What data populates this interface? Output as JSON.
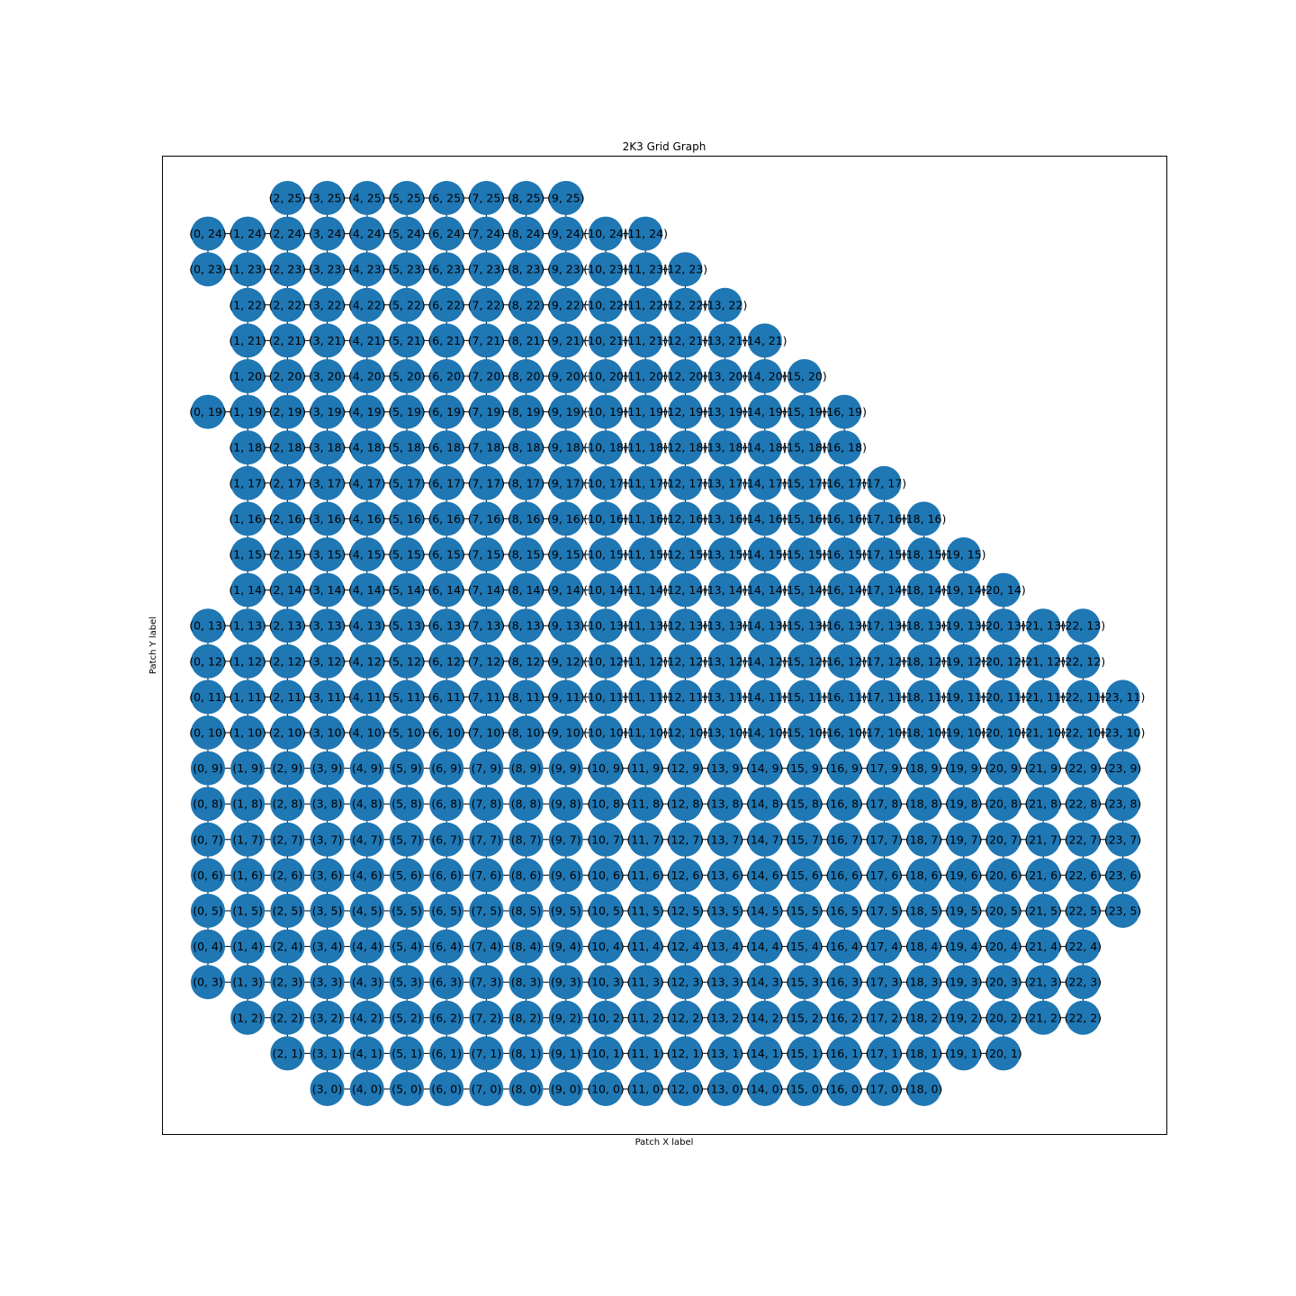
{
  "figure": {
    "title": "2K3 Grid Graph",
    "xlabel": "Patch X label",
    "ylabel": "Patch Y label"
  },
  "colors": {
    "node": "#1f77b4",
    "edge": "#000000",
    "frame": "#000000",
    "background": "#ffffff"
  },
  "graph": {
    "type": "grid-graph",
    "rows": [
      {
        "y": 25,
        "x": [
          2,
          3,
          4,
          5,
          6,
          7,
          8,
          9
        ]
      },
      {
        "y": 24,
        "x": [
          0,
          1,
          2,
          3,
          4,
          5,
          6,
          7,
          8,
          9,
          10,
          11
        ]
      },
      {
        "y": 23,
        "x": [
          0,
          1,
          2,
          3,
          4,
          5,
          6,
          7,
          8,
          9,
          10,
          11,
          12
        ]
      },
      {
        "y": 22,
        "x": [
          1,
          2,
          3,
          4,
          5,
          6,
          7,
          8,
          9,
          10,
          11,
          12,
          13
        ]
      },
      {
        "y": 21,
        "x": [
          1,
          2,
          3,
          4,
          5,
          6,
          7,
          8,
          9,
          10,
          11,
          12,
          13,
          14
        ]
      },
      {
        "y": 20,
        "x": [
          1,
          2,
          3,
          4,
          5,
          6,
          7,
          8,
          9,
          10,
          11,
          12,
          13,
          14,
          15
        ]
      },
      {
        "y": 19,
        "x": [
          0,
          1,
          2,
          3,
          4,
          5,
          6,
          7,
          8,
          9,
          10,
          11,
          12,
          13,
          14,
          15,
          16
        ]
      },
      {
        "y": 18,
        "x": [
          1,
          2,
          3,
          4,
          5,
          6,
          7,
          8,
          9,
          10,
          11,
          12,
          13,
          14,
          15,
          16
        ]
      },
      {
        "y": 17,
        "x": [
          1,
          2,
          3,
          4,
          5,
          6,
          7,
          8,
          9,
          10,
          11,
          12,
          13,
          14,
          15,
          16,
          17
        ]
      },
      {
        "y": 16,
        "x": [
          1,
          2,
          3,
          4,
          5,
          6,
          7,
          8,
          9,
          10,
          11,
          12,
          13,
          14,
          15,
          16,
          17,
          18
        ]
      },
      {
        "y": 15,
        "x": [
          1,
          2,
          3,
          4,
          5,
          6,
          7,
          8,
          9,
          10,
          11,
          12,
          13,
          14,
          15,
          16,
          17,
          18,
          19
        ]
      },
      {
        "y": 14,
        "x": [
          1,
          2,
          3,
          4,
          5,
          6,
          7,
          8,
          9,
          10,
          11,
          12,
          13,
          14,
          15,
          16,
          17,
          18,
          19,
          20
        ]
      },
      {
        "y": 13,
        "x": [
          0,
          1,
          2,
          3,
          4,
          5,
          6,
          7,
          8,
          9,
          10,
          11,
          12,
          13,
          14,
          15,
          16,
          17,
          18,
          19,
          20,
          21,
          22
        ]
      },
      {
        "y": 12,
        "x": [
          0,
          1,
          2,
          3,
          4,
          5,
          6,
          7,
          8,
          9,
          10,
          11,
          12,
          13,
          14,
          15,
          16,
          17,
          18,
          19,
          20,
          21,
          22
        ]
      },
      {
        "y": 11,
        "x": [
          0,
          1,
          2,
          3,
          4,
          5,
          6,
          7,
          8,
          9,
          10,
          11,
          12,
          13,
          14,
          15,
          16,
          17,
          18,
          19,
          20,
          21,
          22,
          23
        ]
      },
      {
        "y": 10,
        "x": [
          0,
          1,
          2,
          3,
          4,
          5,
          6,
          7,
          8,
          9,
          10,
          11,
          12,
          13,
          14,
          15,
          16,
          17,
          18,
          19,
          20,
          21,
          22,
          23
        ]
      },
      {
        "y": 9,
        "x": [
          0,
          1,
          2,
          3,
          4,
          5,
          6,
          7,
          8,
          9,
          10,
          11,
          12,
          13,
          14,
          15,
          16,
          17,
          18,
          19,
          20,
          21,
          22,
          23
        ]
      },
      {
        "y": 8,
        "x": [
          0,
          1,
          2,
          3,
          4,
          5,
          6,
          7,
          8,
          9,
          10,
          11,
          12,
          13,
          14,
          15,
          16,
          17,
          18,
          19,
          20,
          21,
          22,
          23
        ]
      },
      {
        "y": 7,
        "x": [
          0,
          1,
          2,
          3,
          4,
          5,
          6,
          7,
          8,
          9,
          10,
          11,
          12,
          13,
          14,
          15,
          16,
          17,
          18,
          19,
          20,
          21,
          22,
          23
        ]
      },
      {
        "y": 6,
        "x": [
          0,
          1,
          2,
          3,
          4,
          5,
          6,
          7,
          8,
          9,
          10,
          11,
          12,
          13,
          14,
          15,
          16,
          17,
          18,
          19,
          20,
          21,
          22,
          23
        ]
      },
      {
        "y": 5,
        "x": [
          0,
          1,
          2,
          3,
          4,
          5,
          6,
          7,
          8,
          9,
          10,
          11,
          12,
          13,
          14,
          15,
          16,
          17,
          18,
          19,
          20,
          21,
          22,
          23
        ]
      },
      {
        "y": 4,
        "x": [
          0,
          1,
          2,
          3,
          4,
          5,
          6,
          7,
          8,
          9,
          10,
          11,
          12,
          13,
          14,
          15,
          16,
          17,
          18,
          19,
          20,
          21,
          22
        ]
      },
      {
        "y": 3,
        "x": [
          0,
          1,
          2,
          3,
          4,
          5,
          6,
          7,
          8,
          9,
          10,
          11,
          12,
          13,
          14,
          15,
          16,
          17,
          18,
          19,
          20,
          21,
          22
        ]
      },
      {
        "y": 2,
        "x": [
          1,
          2,
          3,
          4,
          5,
          6,
          7,
          8,
          9,
          10,
          11,
          12,
          13,
          14,
          15,
          16,
          17,
          18,
          19,
          20,
          21,
          22
        ]
      },
      {
        "y": 1,
        "x": [
          2,
          3,
          4,
          5,
          6,
          7,
          8,
          9,
          10,
          11,
          12,
          13,
          14,
          15,
          16,
          17,
          18,
          19,
          20
        ]
      },
      {
        "y": 0,
        "x": [
          3,
          4,
          5,
          6,
          7,
          8,
          9,
          10,
          11,
          12,
          13,
          14,
          15,
          16,
          17,
          18
        ]
      }
    ]
  }
}
